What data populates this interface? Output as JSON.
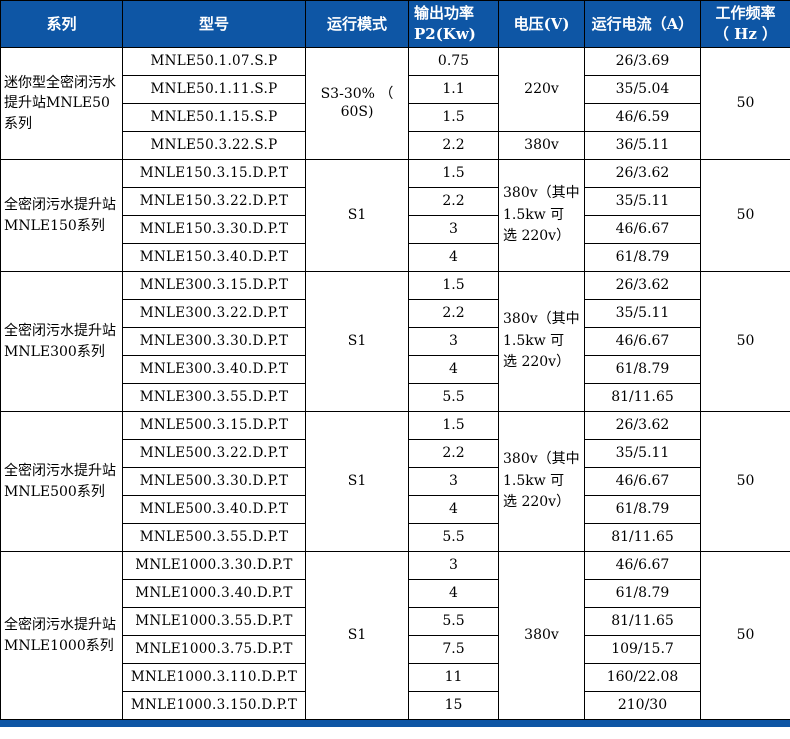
{
  "theme": {
    "header_bg": "#0e56a5",
    "header_text": "#ffffff",
    "border_color": "#000000",
    "body_bg": "#ffffff",
    "body_text": "#000000"
  },
  "table": {
    "columns": [
      {
        "key": "series",
        "label": "系列"
      },
      {
        "key": "model",
        "label": "型号"
      },
      {
        "key": "mode",
        "label": "运行模式"
      },
      {
        "key": "power",
        "label": "输出功率\nP2(Kw)",
        "align": "left"
      },
      {
        "key": "voltage",
        "label": "电压(V)"
      },
      {
        "key": "current",
        "label": "运行电流（A）"
      },
      {
        "key": "freq",
        "label": "工作频率\n（ Hz ）"
      }
    ],
    "groups": [
      {
        "series": "迷你型全密闭污水提升站MNLE50系列",
        "mode": "S3-30% （ 60S)",
        "frequency": "50",
        "voltage": [
          {
            "text": "220v",
            "rows": 3
          },
          {
            "text": "380v",
            "rows": 1
          }
        ],
        "rows": [
          {
            "model": "MNLE50.1.07.S.P",
            "power": "0.75",
            "current": "26/3.69"
          },
          {
            "model": "MNLE50.1.11.S.P",
            "power": "1.1",
            "current": "35/5.04"
          },
          {
            "model": "MNLE50.1.15.S.P",
            "power": "1.5",
            "current": "46/6.59"
          },
          {
            "model": "MNLE50.3.22.S.P",
            "power": "2.2",
            "current": "36/5.11"
          }
        ]
      },
      {
        "series": "全密闭污水提升站 MNLE150系列",
        "mode": "S1",
        "frequency": "50",
        "voltage": [
          {
            "text": "380v（其中 1.5kw 可　选 220v）",
            "rows": 4,
            "align": "left"
          }
        ],
        "rows": [
          {
            "model": "MNLE150.3.15.D.P.T",
            "power": "1.5",
            "current": "26/3.62"
          },
          {
            "model": "MNLE150.3.22.D.P.T",
            "power": "2.2",
            "current": "35/5.11"
          },
          {
            "model": "MNLE150.3.30.D.P.T",
            "power": "3",
            "current": "46/6.67"
          },
          {
            "model": "MNLE150.3.40.D.P.T",
            "power": "4",
            "current": "61/8.79"
          }
        ]
      },
      {
        "series": "全密闭污水提升站 MNLE300系列",
        "mode": "S1",
        "frequency": "50",
        "voltage": [
          {
            "text": "380v（其中 1.5kw 可　选 220v）",
            "rows": 5,
            "align": "left"
          }
        ],
        "rows": [
          {
            "model": "MNLE300.3.15.D.P.T",
            "power": "1.5",
            "current": "26/3.62"
          },
          {
            "model": "MNLE300.3.22.D.P.T",
            "power": "2.2",
            "current": "35/5.11"
          },
          {
            "model": "MNLE300.3.30.D.P.T",
            "power": "3",
            "current": "46/6.67"
          },
          {
            "model": "MNLE300.3.40.D.P.T",
            "power": "4",
            "current": "61/8.79"
          },
          {
            "model": "MNLE300.3.55.D.P.T",
            "power": "5.5",
            "current": "81/11.65"
          }
        ]
      },
      {
        "series": "全密闭污水提升站 MNLE500系列",
        "mode": "S1",
        "frequency": "50",
        "voltage": [
          {
            "text": "380v（其中 1.5kw 可　选 220v）",
            "rows": 5,
            "align": "left"
          }
        ],
        "rows": [
          {
            "model": "MNLE500.3.15.D.P.T",
            "power": "1.5",
            "current": "26/3.62"
          },
          {
            "model": "MNLE500.3.22.D.P.T",
            "power": "2.2",
            "current": "35/5.11"
          },
          {
            "model": "MNLE500.3.30.D.P.T",
            "power": "3",
            "current": "46/6.67"
          },
          {
            "model": "MNLE500.3.40.D.P.T",
            "power": "4",
            "current": "61/8.79"
          },
          {
            "model": "MNLE500.3.55.D.P.T",
            "power": "5.5",
            "current": "81/11.65"
          }
        ]
      },
      {
        "series": "全密闭污水提升站MNLE1000系列",
        "mode": "S1",
        "frequency": "50",
        "voltage": [
          {
            "text": "380v",
            "rows": 6
          }
        ],
        "rows": [
          {
            "model": "MNLE1000.3.30.D.P.T",
            "power": "3",
            "current": "46/6.67"
          },
          {
            "model": "MNLE1000.3.40.D.P.T",
            "power": "4",
            "current": "61/8.79"
          },
          {
            "model": "MNLE1000.3.55.D.P.T",
            "power": "5.5",
            "current": "81/11.65"
          },
          {
            "model": "MNLE1000.3.75.D.P.T",
            "power": "7.5",
            "current": "109/15.7"
          },
          {
            "model": "MNLE1000.3.110.D.P.T",
            "power": "11",
            "current": "160/22.08"
          },
          {
            "model": "MNLE1000.3.150.D.P.T",
            "power": "15",
            "current": "210/30"
          }
        ]
      }
    ]
  }
}
